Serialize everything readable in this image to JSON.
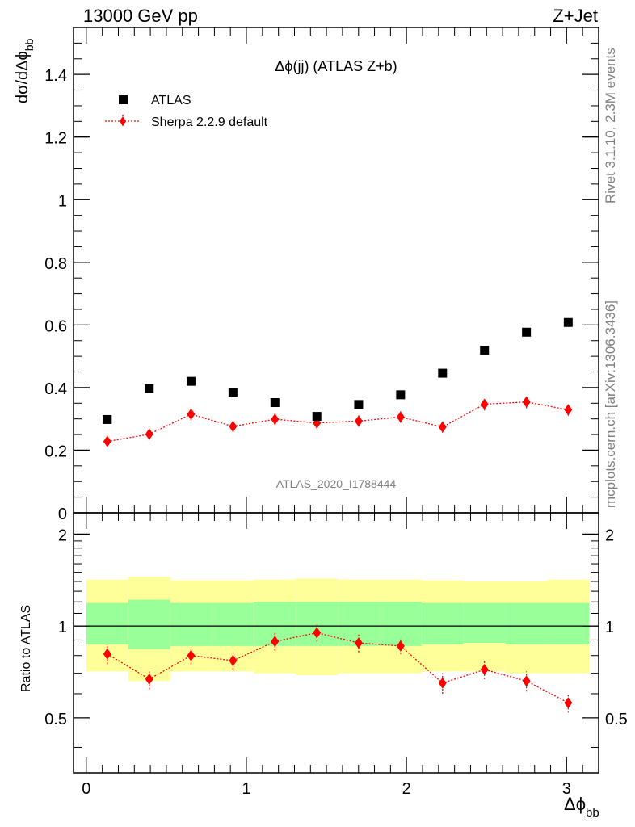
{
  "header": {
    "energy_label": "13000 GeV pp",
    "process_label": "Z+Jet"
  },
  "side_labels": {
    "rivet": "Rivet 3.1.10,  2.3M events",
    "mcplots": "mcplots.cern.ch [arXiv:1306.3436]"
  },
  "chart_data": [
    {
      "type": "scatter",
      "panel": "main",
      "title": "Δϕ(jj) (ATLAS Z+b)",
      "watermark": "ATLAS_2020_I1788444",
      "ylabel_main": "dσ/dΔϕ",
      "ylabel_sub": "bb",
      "xlim": [
        -0.08,
        3.2
      ],
      "ylim": [
        0,
        1.55
      ],
      "yticks": [
        0,
        0.2,
        0.4,
        0.6,
        0.8,
        1,
        1.2,
        1.4
      ],
      "ytick_labels": [
        "0",
        "0.2",
        "0.4",
        "0.6",
        "0.8",
        "1",
        "1.2",
        "1.4"
      ],
      "legend_position": "top-left",
      "x": [
        0.131,
        0.393,
        0.654,
        0.916,
        1.178,
        1.44,
        1.701,
        1.963,
        2.225,
        2.487,
        2.749,
        3.01
      ],
      "series": [
        {
          "name": "ATLAS",
          "color": "#000000",
          "marker": "square",
          "values": [
            0.298,
            0.397,
            0.42,
            0.385,
            0.352,
            0.308,
            0.346,
            0.377,
            0.446,
            0.519,
            0.577,
            0.608
          ]
        },
        {
          "name": "Sherpa 2.2.9 default",
          "color": "#ff0000",
          "marker": "diamond",
          "line": "dotted",
          "values": [
            0.228,
            0.251,
            0.315,
            0.276,
            0.299,
            0.287,
            0.293,
            0.306,
            0.274,
            0.347,
            0.354,
            0.329
          ],
          "errors": [
            0.018,
            0.018,
            0.02,
            0.018,
            0.018,
            0.018,
            0.018,
            0.018,
            0.018,
            0.02,
            0.02,
            0.019
          ]
        }
      ]
    },
    {
      "type": "scatter",
      "panel": "ratio",
      "ylabel": "Ratio to ATLAS",
      "xlabel_main": "Δϕ",
      "xlabel_sub": "bb",
      "xlim": [
        -0.08,
        3.2
      ],
      "ylim": [
        0.33,
        2.35
      ],
      "yticks": [
        0.5,
        1,
        2
      ],
      "ytick_labels": [
        "0.5",
        "1",
        "2"
      ],
      "xticks": [
        0,
        1,
        2,
        3
      ],
      "xtick_labels": [
        "0",
        "1",
        "2",
        "3"
      ],
      "reference_line": 1,
      "bin_edges": [
        0,
        0.262,
        0.524,
        0.785,
        1.047,
        1.309,
        1.571,
        1.833,
        2.094,
        2.356,
        2.618,
        2.88,
        3.142
      ],
      "band_colors": {
        "outer": "#ffff99",
        "inner": "#99ff99"
      },
      "band_outer": {
        "lo": [
          0.71,
          0.66,
          0.71,
          0.71,
          0.7,
          0.69,
          0.7,
          0.7,
          0.71,
          0.71,
          0.7,
          0.7
        ],
        "hi": [
          1.42,
          1.45,
          1.41,
          1.41,
          1.42,
          1.43,
          1.42,
          1.42,
          1.41,
          1.4,
          1.4,
          1.42
        ]
      },
      "band_inner": {
        "lo": [
          0.87,
          0.84,
          0.86,
          0.86,
          0.86,
          0.86,
          0.86,
          0.86,
          0.87,
          0.88,
          0.87,
          0.87
        ],
        "hi": [
          1.19,
          1.22,
          1.19,
          1.19,
          1.2,
          1.2,
          1.2,
          1.2,
          1.19,
          1.19,
          1.19,
          1.19
        ]
      },
      "series": [
        {
          "name": "Sherpa 2.2.9 default",
          "color": "#ff0000",
          "marker": "diamond",
          "line": "dotted",
          "values": [
            0.81,
            0.67,
            0.8,
            0.77,
            0.89,
            0.95,
            0.88,
            0.86,
            0.65,
            0.72,
            0.66,
            0.56
          ],
          "errors": [
            0.06,
            0.05,
            0.05,
            0.05,
            0.06,
            0.06,
            0.06,
            0.05,
            0.05,
            0.05,
            0.05,
            0.04
          ]
        }
      ]
    }
  ]
}
